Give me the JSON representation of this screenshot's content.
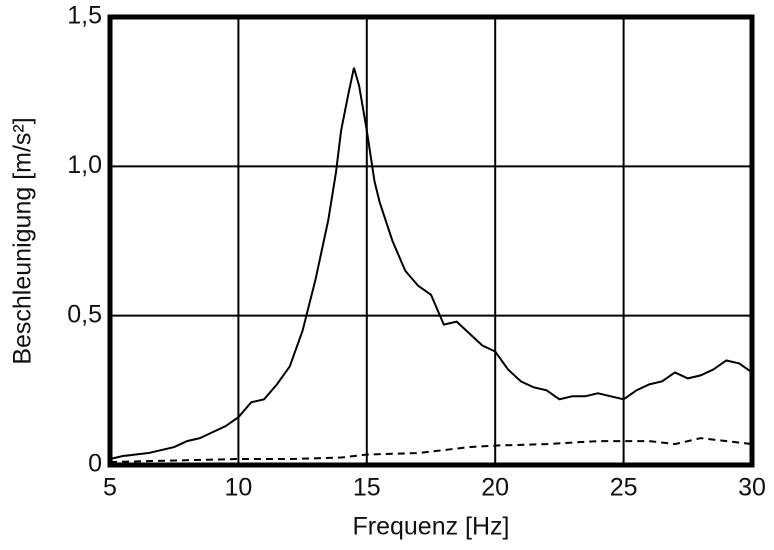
{
  "chart_data": {
    "type": "line",
    "xlabel": "Frequenz [Hz]",
    "ylabel": "Beschleunigung [m/s²]",
    "xlim": [
      5,
      30
    ],
    "ylim": [
      0,
      1.5
    ],
    "xticks": [
      5,
      10,
      15,
      20,
      25,
      30
    ],
    "yticks": [
      0,
      {
        "value": 0.5,
        "label": "0,5"
      },
      {
        "value": 1.0,
        "label": "1,0"
      },
      {
        "value": 1.5,
        "label": "1,5"
      }
    ],
    "grid": true,
    "series": [
      {
        "color": "#000000",
        "line_style": "solid",
        "x": [
          5,
          5.5,
          6,
          6.5,
          7,
          7.5,
          8,
          8.5,
          9,
          9.5,
          10,
          10.5,
          11,
          11.5,
          12,
          12.5,
          13,
          13.5,
          13.8,
          14,
          14.3,
          14.5,
          14.7,
          15,
          15.3,
          15.5,
          16,
          16.5,
          17,
          17.5,
          18,
          18.5,
          19,
          19.5,
          20,
          20.5,
          21,
          21.5,
          22,
          22.5,
          23,
          23.5,
          24,
          24.5,
          25,
          25.5,
          26,
          26.5,
          27,
          27.5,
          28,
          28.5,
          29,
          29.5,
          30
        ],
        "values": [
          0.02,
          0.03,
          0.035,
          0.04,
          0.05,
          0.06,
          0.08,
          0.09,
          0.11,
          0.13,
          0.16,
          0.21,
          0.22,
          0.27,
          0.33,
          0.45,
          0.62,
          0.82,
          0.98,
          1.12,
          1.25,
          1.33,
          1.27,
          1.12,
          0.95,
          0.88,
          0.75,
          0.65,
          0.6,
          0.57,
          0.47,
          0.48,
          0.44,
          0.4,
          0.38,
          0.32,
          0.28,
          0.26,
          0.25,
          0.22,
          0.23,
          0.23,
          0.24,
          0.23,
          0.22,
          0.25,
          0.27,
          0.28,
          0.31,
          0.29,
          0.3,
          0.32,
          0.35,
          0.34,
          0.31
        ]
      },
      {
        "color": "#000000",
        "line_style": "dashed",
        "x": [
          5,
          10,
          12,
          14,
          15,
          17,
          19,
          20,
          22,
          24,
          26,
          27,
          28,
          29,
          30
        ],
        "values": [
          0.01,
          0.02,
          0.02,
          0.025,
          0.035,
          0.04,
          0.06,
          0.065,
          0.07,
          0.08,
          0.08,
          0.07,
          0.09,
          0.08,
          0.07
        ]
      }
    ]
  }
}
